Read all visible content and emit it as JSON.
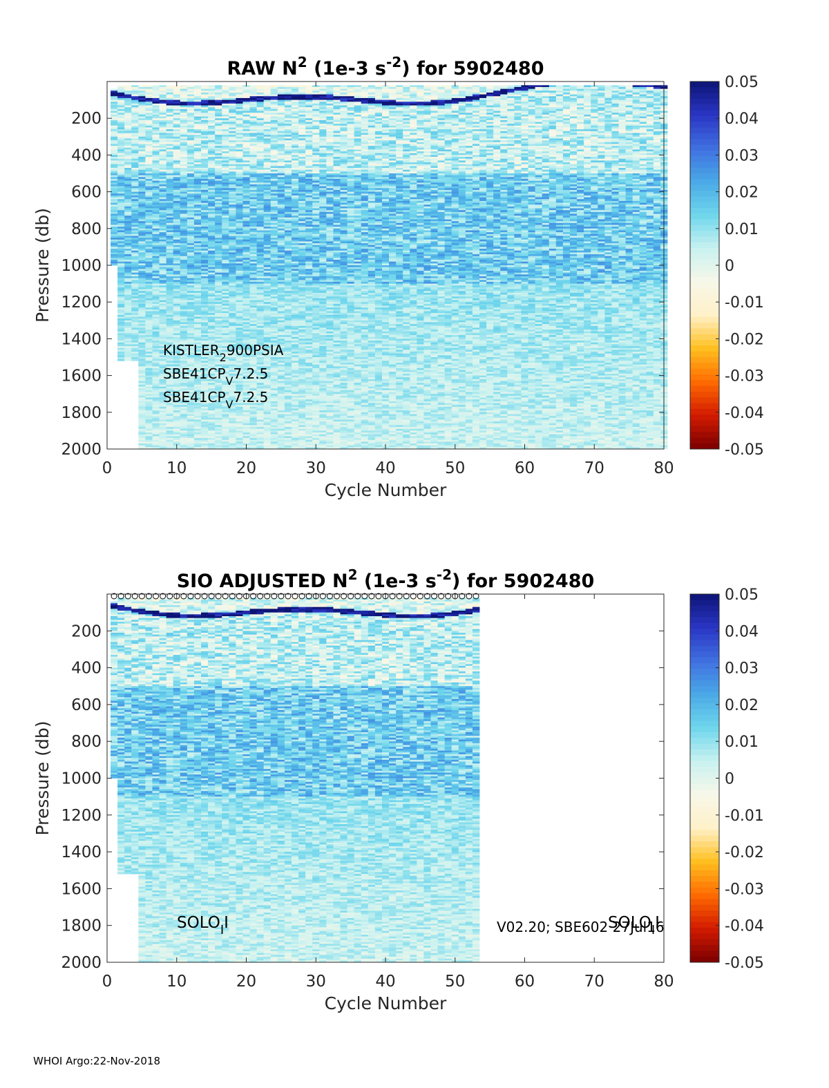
{
  "footer": "WHOI Argo:22-Nov-2018",
  "colormap_stops": [
    "#7a0000",
    "#d21a00",
    "#ff6a00",
    "#ffbf1f",
    "#fff1c8",
    "#f7f7e8",
    "#c9f2f0",
    "#6fd6ec",
    "#4aa9e6",
    "#3f6fe0",
    "#2a35c4",
    "#0d1475"
  ],
  "chart_data": [
    {
      "type": "heatmap",
      "title_parts": [
        "RAW N",
        "2",
        " (1e-3 s",
        "-2",
        ") for 5902480"
      ],
      "xlabel": "Cycle Number",
      "ylabel": "Pressure (db)",
      "xlim": [
        0,
        80
      ],
      "ylim": [
        2000,
        0
      ],
      "xticks": [
        "0",
        "10",
        "20",
        "30",
        "40",
        "50",
        "60",
        "70",
        "80"
      ],
      "yticks": [
        "200",
        "400",
        "600",
        "800",
        "1000",
        "1200",
        "1400",
        "1600",
        "1800",
        "2000"
      ],
      "data_cycles": [
        1,
        80
      ],
      "colorbar": {
        "range": [
          -0.05,
          0.05
        ],
        "ticks": [
          "0.05",
          "0.04",
          "0.03",
          "0.02",
          "0.01",
          "0",
          "-0.01",
          "-0.02",
          "-0.03",
          "-0.04",
          "-0.05"
        ]
      },
      "annotations": [
        {
          "parts": [
            "KISTLER",
            "2",
            "900PSIA"
          ],
          "sub": [
            1
          ]
        },
        {
          "parts": [
            "SBE41CP",
            "V",
            "7.2.5"
          ],
          "sub": [
            1
          ]
        },
        {
          "parts": [
            "SBE41CP",
            "V",
            "7.2.5"
          ],
          "sub": [
            1
          ]
        }
      ]
    },
    {
      "type": "heatmap",
      "title_parts": [
        "SIO  ADJUSTED N",
        "2",
        " (1e-3 s",
        "-2",
        ") for 5902480"
      ],
      "xlabel": "Cycle Number",
      "ylabel": "Pressure (db)",
      "xlim": [
        0,
        80
      ],
      "ylim": [
        2000,
        0
      ],
      "xticks": [
        "0",
        "10",
        "20",
        "30",
        "40",
        "50",
        "60",
        "70",
        "80"
      ],
      "yticks": [
        "200",
        "400",
        "600",
        "800",
        "1000",
        "1200",
        "1400",
        "1600",
        "1800",
        "2000"
      ],
      "data_cycles": [
        1,
        53
      ],
      "surface_markers": "circles",
      "colorbar": {
        "range": [
          -0.05,
          0.05
        ],
        "ticks": [
          "0.05",
          "0.04",
          "0.03",
          "0.02",
          "0.01",
          "0",
          "-0.01",
          "-0.02",
          "-0.03",
          "-0.04",
          "-0.05"
        ]
      },
      "annotations": [
        {
          "parts": [
            "SOLO",
            "I",
            "I"
          ],
          "sub": [
            1
          ]
        },
        {
          "parts": [
            "V02.20; SBE602 27Jul16"
          ],
          "sub": []
        },
        {
          "parts": [
            "SOLO",
            "I",
            "I"
          ],
          "sub": [
            1
          ]
        }
      ]
    }
  ]
}
